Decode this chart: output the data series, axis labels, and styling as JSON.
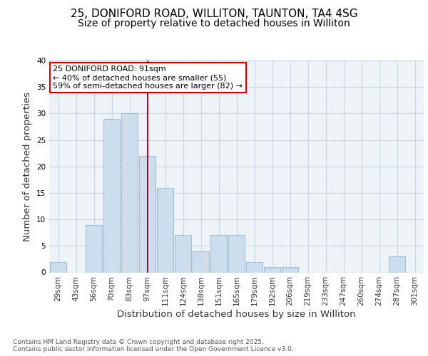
{
  "title_line1": "25, DONIFORD ROAD, WILLITON, TAUNTON, TA4 4SG",
  "title_line2": "Size of property relative to detached houses in Williton",
  "xlabel": "Distribution of detached houses by size in Williton",
  "ylabel": "Number of detached properties",
  "categories": [
    "29sqm",
    "43sqm",
    "56sqm",
    "70sqm",
    "83sqm",
    "97sqm",
    "111sqm",
    "124sqm",
    "138sqm",
    "151sqm",
    "165sqm",
    "179sqm",
    "192sqm",
    "206sqm",
    "219sqm",
    "233sqm",
    "247sqm",
    "260sqm",
    "274sqm",
    "287sqm",
    "301sqm"
  ],
  "values": [
    2,
    0,
    9,
    29,
    30,
    22,
    16,
    7,
    4,
    7,
    7,
    2,
    1,
    1,
    0,
    0,
    0,
    0,
    0,
    3,
    0
  ],
  "bar_color": "#ccdded",
  "bar_edge_color": "#a0c0d8",
  "red_line_index": 5,
  "annotation_text": "25 DONIFORD ROAD: 91sqm\n← 40% of detached houses are smaller (55)\n59% of semi-detached houses are larger (82) →",
  "annotation_box_color": "white",
  "annotation_box_edge_color": "#cc0000",
  "ylim": [
    0,
    40
  ],
  "yticks": [
    0,
    5,
    10,
    15,
    20,
    25,
    30,
    35,
    40
  ],
  "footnote": "Contains HM Land Registry data © Crown copyright and database right 2025.\nContains public sector information licensed under the Open Government Licence v3.0.",
  "background_color": "white",
  "plot_bg_color": "#eef3f8",
  "grid_color": "#c5d5e5",
  "title_fontsize": 11,
  "subtitle_fontsize": 10,
  "tick_fontsize": 7.5,
  "label_fontsize": 9.5,
  "footnote_fontsize": 6.5
}
